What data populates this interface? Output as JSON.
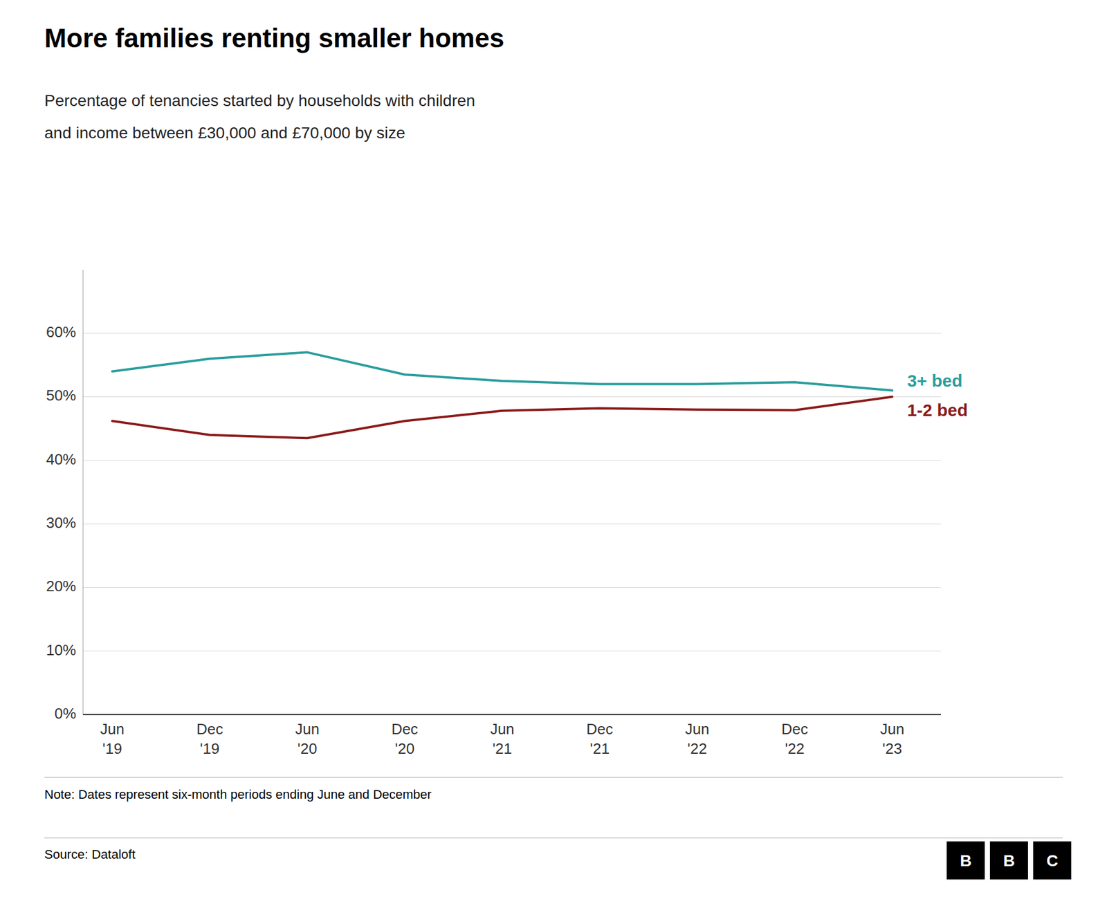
{
  "chart_data": {
    "type": "line",
    "title": "More families renting smaller homes",
    "subtitle": [
      "Percentage of tenancies started by households with children",
      "and income between £30,000 and £70,000 by size"
    ],
    "annotations": [
      "Note: Dates represent six-month periods ending June and December",
      "Source: Dataloft",
      "BBC"
    ],
    "categories": [
      "Jun\n'19",
      "Dec\n'19",
      "Jun\n'20",
      "Dec\n'20",
      "Jun\n'21",
      "Dec\n'21",
      "Jun\n'22",
      "Dec\n'22",
      "Jun\n'23"
    ],
    "series": [
      {
        "name": "3+ bed",
        "color": "#2a9d9d",
        "values": [
          0.54,
          0.56,
          0.57,
          0.535,
          0.525,
          0.52,
          0.52,
          0.523,
          0.51
        ]
      },
      {
        "name": "1-2 bed",
        "color": "#8b1a1a",
        "values": [
          0.462,
          0.44,
          0.435,
          0.462,
          0.478,
          0.482,
          0.48,
          0.479,
          0.5
        ]
      }
    ],
    "ylim": [
      0,
      0.7
    ],
    "yticks": [
      {
        "value": 0.0,
        "label": "0%"
      },
      {
        "value": 0.1,
        "label": "10%"
      },
      {
        "value": 0.2,
        "label": "20%"
      },
      {
        "value": 0.3,
        "label": "30%"
      },
      {
        "value": 0.4,
        "label": "40%"
      },
      {
        "value": 0.5,
        "label": "50%"
      },
      {
        "value": 0.6,
        "label": "60%"
      }
    ],
    "grid": true
  }
}
